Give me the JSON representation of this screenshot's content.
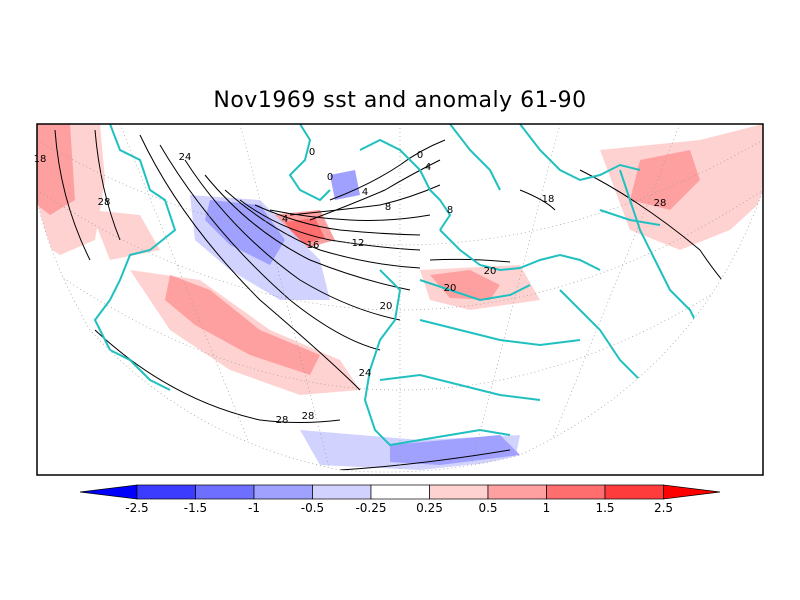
{
  "title": "Nov1969 sst and anomaly 61-90",
  "contour_labels": [
    "24",
    "28",
    "0",
    "0",
    "4",
    "0",
    "4",
    "4",
    "8",
    "8",
    "18",
    "16",
    "12",
    "20",
    "20",
    "20",
    "24",
    "28",
    "28",
    "18",
    "28"
  ],
  "colorbar": {
    "tick_labels": [
      "-2.5",
      "-1.5",
      "-1",
      "-0.5",
      "-0.25",
      "0.25",
      "0.5",
      "1",
      "1.5",
      "2.5"
    ],
    "colors": [
      "#0000ff",
      "#3c3cff",
      "#6e6eff",
      "#a0a0ff",
      "#d2d2ff",
      "#ffffff",
      "#ffd2d2",
      "#ffa0a0",
      "#ff6e6e",
      "#ff3c3c",
      "#ff0000"
    ]
  },
  "colors": {
    "coastline": "#20c0c0",
    "contour": "#000000",
    "warm_anomaly": "#ffa0a0",
    "cool_anomaly": "#a0a0ff"
  }
}
